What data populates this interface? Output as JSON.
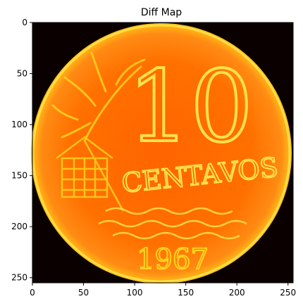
{
  "chart_data": {
    "type": "heatmap",
    "title": "Diff Map",
    "xlabel": "",
    "ylabel": "",
    "colormap": "hot",
    "image_size": [
      256,
      256
    ],
    "xlim": [
      0,
      255
    ],
    "ylim": [
      255,
      0
    ],
    "x_ticks": [
      0,
      50,
      100,
      150,
      200,
      250
    ],
    "y_ticks": [
      0,
      50,
      100,
      150,
      200,
      250
    ],
    "x_tick_labels": [
      "0",
      "50",
      "100",
      "150",
      "200",
      "250"
    ],
    "y_tick_labels": [
      "0",
      "50",
      "100",
      "150",
      "200",
      "250"
    ],
    "image_content": {
      "coin_denomination": "10",
      "coin_word": "CENTAVOS",
      "coin_year": "1967"
    },
    "colors": {
      "background": "#0a0000",
      "low": "#b81a00",
      "mid": "#ff5a00",
      "high": "#ffd21e",
      "max": "#ffffff"
    }
  }
}
